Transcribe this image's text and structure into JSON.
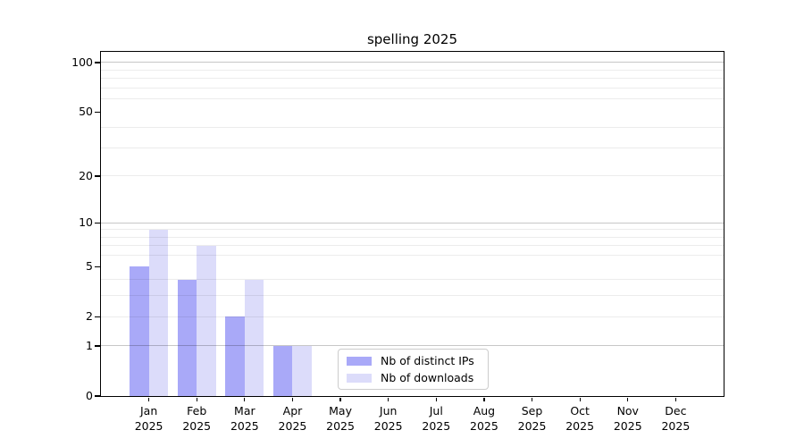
{
  "chart_data": {
    "type": "bar",
    "title": "spelling 2025",
    "x_labels": [
      {
        "month": "Jan",
        "year": "2025"
      },
      {
        "month": "Feb",
        "year": "2025"
      },
      {
        "month": "Mar",
        "year": "2025"
      },
      {
        "month": "Apr",
        "year": "2025"
      },
      {
        "month": "May",
        "year": "2025"
      },
      {
        "month": "Jun",
        "year": "2025"
      },
      {
        "month": "Jul",
        "year": "2025"
      },
      {
        "month": "Aug",
        "year": "2025"
      },
      {
        "month": "Sep",
        "year": "2025"
      },
      {
        "month": "Oct",
        "year": "2025"
      },
      {
        "month": "Nov",
        "year": "2025"
      },
      {
        "month": "Dec",
        "year": "2025"
      }
    ],
    "series": [
      {
        "name": "Nb of distinct IPs",
        "color": "#a9a9f8",
        "values": [
          5,
          4,
          2,
          1,
          0,
          0,
          0,
          0,
          0,
          0,
          0,
          0
        ]
      },
      {
        "name": "Nb of downloads",
        "color": "#dcdcfa",
        "values": [
          9,
          7,
          4,
          1,
          0,
          0,
          0,
          0,
          0,
          0,
          0,
          0
        ]
      }
    ],
    "y_axis": {
      "scale": "log1p",
      "tick_values": [
        0,
        1,
        2,
        5,
        10,
        20,
        50,
        100
      ],
      "tick_labels": [
        "0",
        "1",
        "2",
        "5",
        "10",
        "20",
        "50",
        "100"
      ],
      "major_grid_values": [
        1,
        10,
        100
      ],
      "minor_grid_values": [
        2,
        3,
        4,
        6,
        7,
        8,
        9,
        20,
        30,
        40,
        60,
        70,
        80,
        90
      ],
      "range_max": 116
    },
    "legend": {
      "position": "lower center",
      "entries": [
        "Nb of distinct IPs",
        "Nb of downloads"
      ]
    },
    "grid": true,
    "colors": {
      "major_grid": "rgba(0,0,0,0.22)",
      "minor_grid": "rgba(0,0,0,0.075)",
      "axis": "#000000",
      "background": "#ffffff"
    }
  }
}
